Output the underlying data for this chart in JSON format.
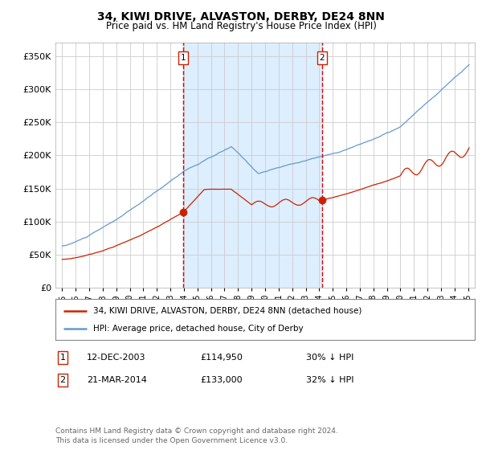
{
  "title": "34, KIWI DRIVE, ALVASTON, DERBY, DE24 8NN",
  "subtitle": "Price paid vs. HM Land Registry's House Price Index (HPI)",
  "background_color": "#ffffff",
  "plot_bg_color": "#ffffff",
  "grid_color": "#cccccc",
  "hpi_color": "#6699cc",
  "price_color": "#cc2200",
  "shade_color": "#ddeeff",
  "transaction1_date": 2003.95,
  "transaction1_price": 114950,
  "transaction2_date": 2014.22,
  "transaction2_price": 133000,
  "vline_color": "#dd0000",
  "legend_line1": "34, KIWI DRIVE, ALVASTON, DERBY, DE24 8NN (detached house)",
  "legend_line2": "HPI: Average price, detached house, City of Derby",
  "table_row1_num": "1",
  "table_row1_date": "12-DEC-2003",
  "table_row1_price": "£114,950",
  "table_row1_hpi": "30% ↓ HPI",
  "table_row2_num": "2",
  "table_row2_date": "21-MAR-2014",
  "table_row2_price": "£133,000",
  "table_row2_hpi": "32% ↓ HPI",
  "footer": "Contains HM Land Registry data © Crown copyright and database right 2024.\nThis data is licensed under the Open Government Licence v3.0.",
  "ylim": [
    0,
    370000
  ],
  "yticks": [
    0,
    50000,
    100000,
    150000,
    200000,
    250000,
    300000,
    350000
  ],
  "xlim_start": 1994.5,
  "xlim_end": 2025.5,
  "xticks": [
    1995,
    1996,
    1997,
    1998,
    1999,
    2000,
    2001,
    2002,
    2003,
    2004,
    2005,
    2006,
    2007,
    2008,
    2009,
    2010,
    2011,
    2012,
    2013,
    2014,
    2015,
    2016,
    2017,
    2018,
    2019,
    2020,
    2021,
    2022,
    2023,
    2024,
    2025
  ]
}
